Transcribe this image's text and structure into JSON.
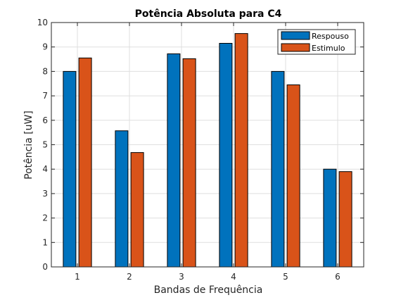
{
  "chart_data": {
    "type": "bar",
    "title": "Potência Absoluta para C4",
    "xlabel": "Bandas de Frequência",
    "ylabel": "Potência [uW]",
    "categories": [
      "1",
      "2",
      "3",
      "4",
      "5",
      "6"
    ],
    "series": [
      {
        "name": "Respouso",
        "color": "#0072BD",
        "values": [
          8.0,
          5.57,
          8.72,
          9.15,
          8.0,
          4.0
        ]
      },
      {
        "name": "Estimulo",
        "color": "#D95319",
        "values": [
          8.55,
          4.68,
          8.52,
          9.55,
          7.45,
          3.9
        ]
      }
    ],
    "ylim": [
      0,
      10
    ],
    "yticks": [
      "0",
      "1",
      "2",
      "3",
      "4",
      "5",
      "6",
      "7",
      "8",
      "9",
      "10"
    ],
    "grid": true,
    "legend_position": "top-right"
  }
}
